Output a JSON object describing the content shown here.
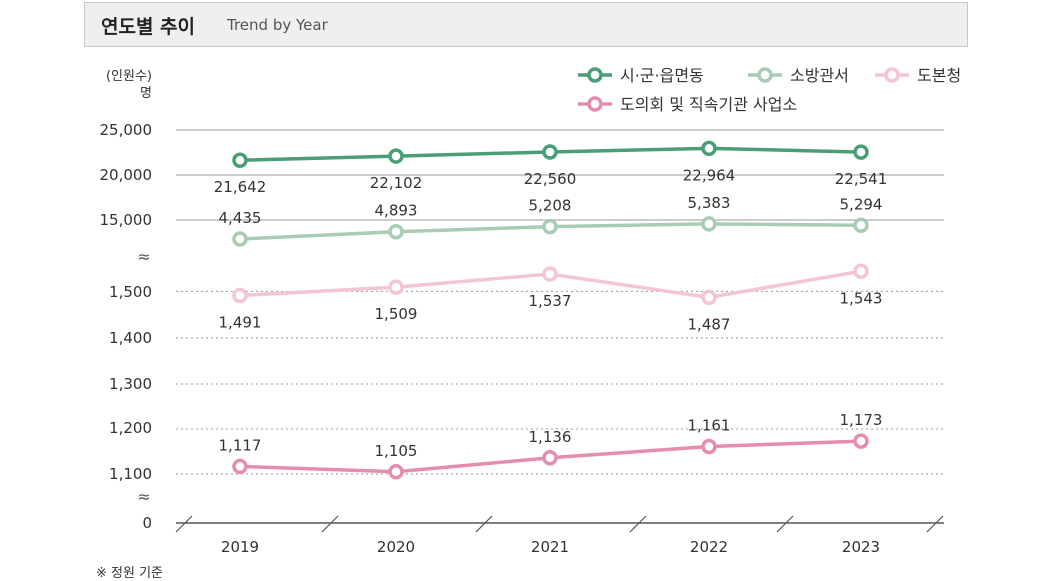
{
  "header": {
    "title": "연도별 추이",
    "subtitle": "Trend by Year"
  },
  "footnote": "※ 정원 기준",
  "colors": {
    "city": "#4a9e76",
    "fire": "#a8ccb4",
    "office": "#f4c6d2",
    "council": "#e58db0",
    "axis": "#555555",
    "grid": "#999999"
  },
  "chart_data": {
    "type": "line",
    "title": "연도별 추이",
    "ylabel": "(인원수) 명",
    "ylabel_top": "(인원수)",
    "ylabel_unit": "명",
    "categories": [
      "2019",
      "2020",
      "2021",
      "2022",
      "2023"
    ],
    "broken_axis": true,
    "axis_break_symbol": "≈",
    "y_ticks": [
      "25,000",
      "20,000",
      "15,000",
      "1,500",
      "1,400",
      "1,300",
      "1,200",
      "1,100",
      "0"
    ],
    "legend_position": "top-right",
    "series": [
      {
        "name": "시·군·읍면동",
        "color_key": "city",
        "values": [
          21642,
          22102,
          22560,
          22964,
          22541
        ],
        "labels": [
          "21,642",
          "22,102",
          "22,560",
          "22,964",
          "22,541"
        ]
      },
      {
        "name": "소방관서",
        "color_key": "fire",
        "values": [
          4435,
          4893,
          5208,
          5383,
          5294
        ],
        "labels": [
          "4,435",
          "4,893",
          "5,208",
          "5,383",
          "5,294"
        ]
      },
      {
        "name": "도본청",
        "color_key": "office",
        "values": [
          1491,
          1509,
          1537,
          1487,
          1543
        ],
        "labels": [
          "1,491",
          "1,509",
          "1,537",
          "1,487",
          "1,543"
        ]
      },
      {
        "name": "도의회 및 직속기관 사업소",
        "color_key": "council",
        "values": [
          1117,
          1105,
          1136,
          1161,
          1173
        ],
        "labels": [
          "1,117",
          "1,105",
          "1,136",
          "1,161",
          "1,173"
        ]
      }
    ]
  }
}
